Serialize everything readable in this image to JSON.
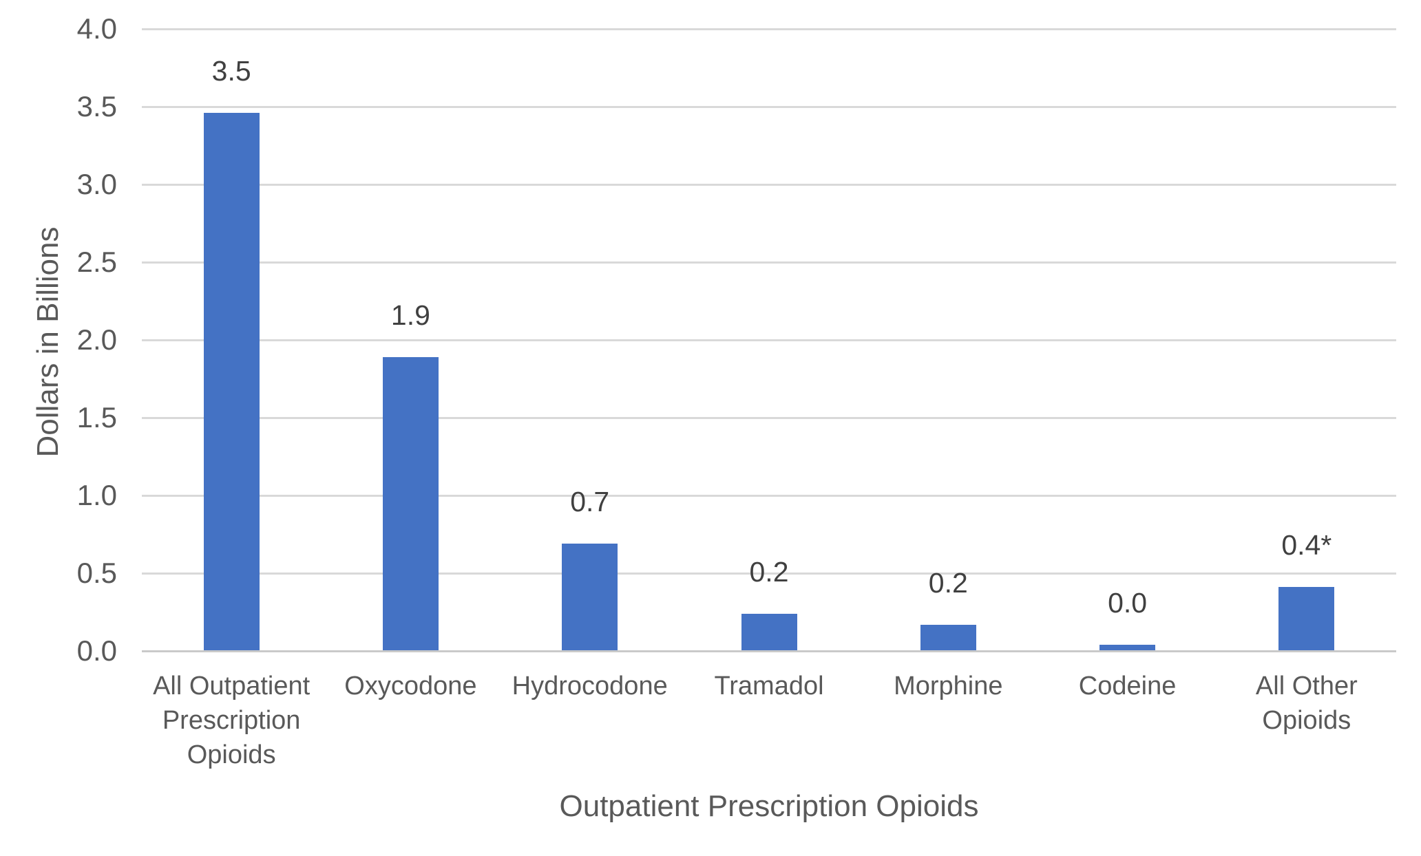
{
  "chart_data": {
    "type": "bar",
    "title": "",
    "xlabel": "Outpatient Prescription Opioids",
    "ylabel": "Dollars in Billions",
    "categories": [
      "All Outpatient Prescription Opioids",
      "Oxycodone",
      "Hydrocodone",
      "Tramadol",
      "Morphine",
      "Codeine",
      "All Other Opioids"
    ],
    "values": [
      3.46,
      1.89,
      0.69,
      0.24,
      0.17,
      0.04,
      0.41
    ],
    "data_labels": [
      "3.5",
      "1.9",
      "0.7",
      "0.2",
      "0.2",
      "0.0",
      "0.4*"
    ],
    "ylim": [
      0,
      4.0
    ],
    "ytick_labels": [
      "0.0",
      "0.5",
      "1.0",
      "1.5",
      "2.0",
      "2.5",
      "3.0",
      "3.5",
      "4.0"
    ],
    "grid": true,
    "legend": "none",
    "colors": {
      "bar": "#4472C4",
      "gridline": "#D9D9D9",
      "axis_line": "#C9C9C9",
      "tick_label": "#595959",
      "axis_title": "#595959",
      "data_label": "#404040"
    }
  }
}
